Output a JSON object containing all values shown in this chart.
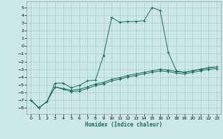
{
  "xlabel": "Humidex (Indice chaleur)",
  "background_color": "#cce8e6",
  "grid_color": "#aaccca",
  "line_color": "#1a6b5a",
  "xlim": [
    -0.5,
    23.5
  ],
  "ylim": [
    -8.8,
    5.8
  ],
  "xticks": [
    0,
    1,
    2,
    3,
    4,
    5,
    6,
    7,
    8,
    9,
    10,
    11,
    12,
    13,
    14,
    15,
    16,
    17,
    18,
    19,
    20,
    21,
    22,
    23
  ],
  "yticks": [
    5,
    4,
    3,
    2,
    1,
    0,
    -1,
    -2,
    -3,
    -4,
    -5,
    -6,
    -7,
    -8
  ],
  "series1_x": [
    0,
    1,
    2,
    3,
    4,
    5,
    6,
    7,
    8,
    9,
    10,
    11,
    12,
    13,
    14,
    15,
    16,
    17,
    18,
    19,
    20,
    21,
    22,
    23
  ],
  "series1_y": [
    -7.0,
    -8.0,
    -7.2,
    -4.8,
    -4.8,
    -5.4,
    -5.1,
    -4.5,
    -4.4,
    -1.2,
    3.7,
    3.1,
    3.2,
    3.2,
    3.3,
    5.0,
    4.6,
    -0.8,
    -3.2,
    -3.4,
    -3.2,
    -3.0,
    -2.8,
    -2.7
  ],
  "series2_x": [
    0,
    1,
    2,
    3,
    4,
    5,
    6,
    7,
    8,
    9,
    10,
    11,
    12,
    13,
    14,
    15,
    16,
    17,
    18,
    19,
    20,
    21,
    22,
    23
  ],
  "series2_y": [
    -7.0,
    -8.0,
    -7.2,
    -5.3,
    -5.5,
    -5.7,
    -5.6,
    -5.3,
    -4.9,
    -4.7,
    -4.3,
    -4.1,
    -3.8,
    -3.6,
    -3.4,
    -3.2,
    -3.0,
    -3.1,
    -3.3,
    -3.4,
    -3.2,
    -3.0,
    -2.8,
    -2.7
  ],
  "series3_x": [
    0,
    1,
    2,
    3,
    4,
    5,
    6,
    7,
    8,
    9,
    10,
    11,
    12,
    13,
    14,
    15,
    16,
    17,
    18,
    19,
    20,
    21,
    22,
    23
  ],
  "series3_y": [
    -7.0,
    -8.0,
    -7.2,
    -5.3,
    -5.6,
    -5.9,
    -5.8,
    -5.5,
    -5.1,
    -4.9,
    -4.5,
    -4.3,
    -4.0,
    -3.8,
    -3.6,
    -3.4,
    -3.2,
    -3.3,
    -3.5,
    -3.6,
    -3.4,
    -3.2,
    -3.0,
    -2.9
  ]
}
